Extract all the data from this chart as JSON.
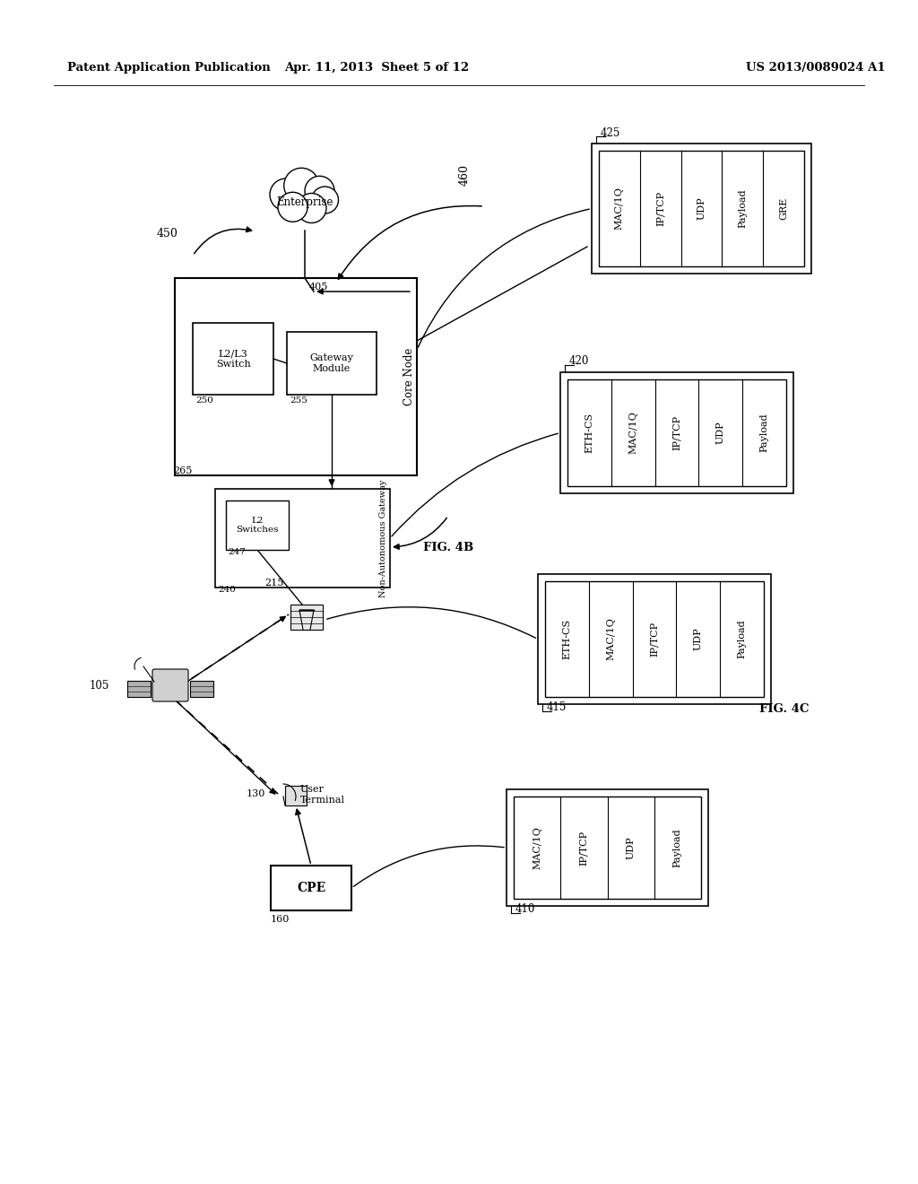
{
  "background_color": "#ffffff",
  "header_left": "Patent Application Publication",
  "header_mid": "Apr. 11, 2013  Sheet 5 of 12",
  "header_right": "US 2013/0089024 A1",
  "fig4b_label": "FIG. 4B",
  "fig4c_label": "FIG. 4C",
  "core_node_label": "Core Node",
  "enterprise_label": "Enterprise",
  "gateway_module_label": "Gateway\nModule",
  "l2l3_switch_label": "L2/L3\nSwitch",
  "nag_label": "Non-Autonomous Gateway",
  "l2_switches_label": "L2\nSwitches",
  "ut_label": "User\nTerminal",
  "cpe_label": "CPE",
  "lbl_450": "450",
  "lbl_460": "460",
  "lbl_405": "405",
  "lbl_265": "265",
  "lbl_250": "250",
  "lbl_255": "255",
  "lbl_247": "247",
  "lbl_240": "240",
  "lbl_215": "215",
  "lbl_105": "105",
  "lbl_130": "130",
  "lbl_160": "160",
  "lbl_410": "410",
  "lbl_415": "415",
  "lbl_420": "420",
  "lbl_425": "425",
  "pkt410_labels": [
    "MAC/1Q",
    "IP/TCP",
    "UDP",
    "Payload"
  ],
  "pkt415_labels": [
    "ETH-CS",
    "MAC/1Q",
    "IP/TCP",
    "UDP",
    "Payload"
  ],
  "pkt420_labels": [
    "ETH-CS",
    "MAC/1Q",
    "IP/TCP",
    "UDP",
    "Payload"
  ],
  "pkt425_labels": [
    "MAC/1Q",
    "IP/TCP",
    "UDP",
    "Payload",
    "GRE"
  ]
}
